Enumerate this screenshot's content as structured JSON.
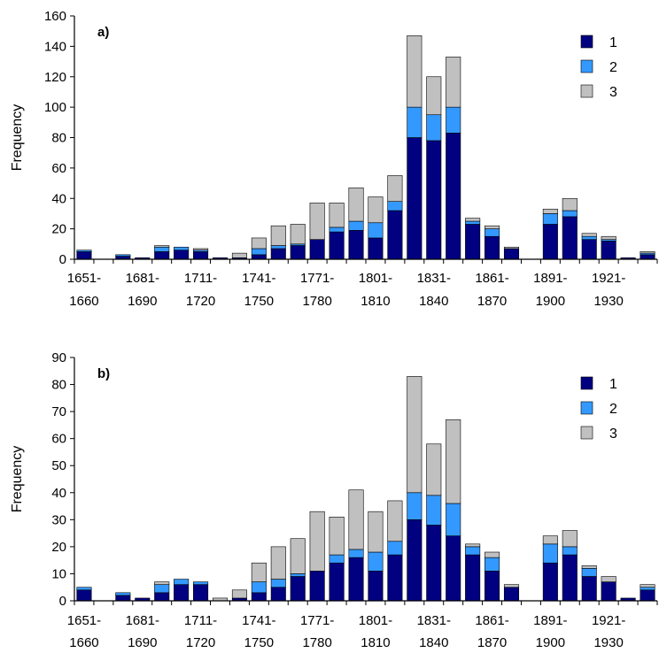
{
  "chart_data": [
    {
      "type": "bar",
      "stacked": true,
      "panel_label": "a)",
      "ylabel": "Frequency",
      "ylim": [
        0,
        160
      ],
      "yticks": [
        0,
        20,
        40,
        60,
        80,
        100,
        120,
        140,
        160
      ],
      "categories": [
        "1651-1660",
        "1661-1670",
        "1671-1680",
        "1681-1690",
        "1691-1700",
        "1701-1710",
        "1711-1720",
        "1721-1730",
        "1731-1740",
        "1741-1750",
        "1751-1760",
        "1761-1770",
        "1771-1780",
        "1781-1790",
        "1791-1800",
        "1801-1810",
        "1811-1820",
        "1821-1830",
        "1831-1840",
        "1841-1850",
        "1851-1860",
        "1861-1870",
        "1871-1880",
        "1881-1890",
        "1891-1900",
        "1901-1910",
        "1911-1920",
        "1921-1930",
        "1931-1940",
        "1941-1950"
      ],
      "x_tick_labels": [
        {
          "top": "1651-",
          "bottom": "1660",
          "index": 0
        },
        {
          "top": "1681-",
          "bottom": "1690",
          "index": 3
        },
        {
          "top": "1711-",
          "bottom": "1720",
          "index": 6
        },
        {
          "top": "1741-",
          "bottom": "1750",
          "index": 9
        },
        {
          "top": "1771-",
          "bottom": "1780",
          "index": 12
        },
        {
          "top": "1801-",
          "bottom": "1810",
          "index": 15
        },
        {
          "top": "1831-",
          "bottom": "1840",
          "index": 18
        },
        {
          "top": "1861-",
          "bottom": "1870",
          "index": 21
        },
        {
          "top": "1891-",
          "bottom": "1900",
          "index": 24
        },
        {
          "top": "1921-",
          "bottom": "1930",
          "index": 27
        }
      ],
      "series": [
        {
          "name": "1",
          "values": [
            5,
            0,
            2,
            1,
            5,
            6,
            5,
            1,
            1,
            3,
            7,
            9,
            13,
            18,
            19,
            14,
            32,
            80,
            78,
            83,
            23,
            15,
            7,
            0,
            23,
            28,
            13,
            12,
            1,
            3
          ]
        },
        {
          "name": "2",
          "values": [
            1,
            0,
            1,
            0,
            3,
            2,
            1,
            0,
            0,
            4,
            2,
            1,
            0,
            3,
            6,
            10,
            6,
            20,
            17,
            17,
            2,
            5,
            0,
            0,
            7,
            4,
            2,
            1,
            0,
            1
          ]
        },
        {
          "name": "3",
          "values": [
            0,
            0,
            0,
            0,
            1,
            0,
            1,
            0,
            3,
            7,
            13,
            13,
            24,
            16,
            22,
            17,
            17,
            47,
            25,
            33,
            2,
            2,
            1,
            0,
            3,
            8,
            2,
            2,
            0,
            1
          ]
        }
      ],
      "legend": {
        "position": "top-right"
      },
      "colors": {
        "1": "#000080",
        "2": "#3399ff",
        "3": "#c0c0c0"
      }
    },
    {
      "type": "bar",
      "stacked": true,
      "panel_label": "b)",
      "ylabel": "Frequency",
      "ylim": [
        0,
        90
      ],
      "yticks": [
        0,
        10,
        20,
        30,
        40,
        50,
        60,
        70,
        80,
        90
      ],
      "categories": [
        "1651-1660",
        "1661-1670",
        "1671-1680",
        "1681-1690",
        "1691-1700",
        "1701-1710",
        "1711-1720",
        "1721-1730",
        "1731-1740",
        "1741-1750",
        "1751-1760",
        "1761-1770",
        "1771-1780",
        "1781-1790",
        "1791-1800",
        "1801-1810",
        "1811-1820",
        "1821-1830",
        "1831-1840",
        "1841-1850",
        "1851-1860",
        "1861-1870",
        "1871-1880",
        "1881-1890",
        "1891-1900",
        "1901-1910",
        "1911-1920",
        "1921-1930",
        "1931-1940",
        "1941-1950"
      ],
      "x_tick_labels": [
        {
          "top": "1651-",
          "bottom": "1660",
          "index": 0
        },
        {
          "top": "1681-",
          "bottom": "1690",
          "index": 3
        },
        {
          "top": "1711-",
          "bottom": "1720",
          "index": 6
        },
        {
          "top": "1741-",
          "bottom": "1750",
          "index": 9
        },
        {
          "top": "1771-",
          "bottom": "1780",
          "index": 12
        },
        {
          "top": "1801-",
          "bottom": "1810",
          "index": 15
        },
        {
          "top": "1831-",
          "bottom": "1840",
          "index": 18
        },
        {
          "top": "1861-",
          "bottom": "1870",
          "index": 21
        },
        {
          "top": "1891-",
          "bottom": "1900",
          "index": 24
        },
        {
          "top": "1921-",
          "bottom": "1930",
          "index": 27
        }
      ],
      "series": [
        {
          "name": "1",
          "values": [
            4,
            0,
            2,
            1,
            3,
            6,
            6,
            0,
            1,
            3,
            5,
            9,
            11,
            14,
            16,
            11,
            17,
            30,
            28,
            24,
            17,
            11,
            5,
            0,
            14,
            17,
            9,
            7,
            1,
            4
          ]
        },
        {
          "name": "2",
          "values": [
            1,
            0,
            1,
            0,
            3,
            2,
            1,
            0,
            0,
            4,
            3,
            1,
            0,
            3,
            3,
            7,
            5,
            10,
            11,
            12,
            3,
            5,
            0,
            0,
            7,
            3,
            3,
            0,
            0,
            1
          ]
        },
        {
          "name": "3",
          "values": [
            0,
            0,
            0,
            0,
            1,
            0,
            0,
            1,
            3,
            7,
            12,
            13,
            22,
            14,
            22,
            15,
            15,
            43,
            19,
            31,
            1,
            2,
            1,
            0,
            3,
            6,
            1,
            2,
            0,
            1
          ]
        }
      ],
      "legend": {
        "position": "top-right"
      },
      "colors": {
        "1": "#000080",
        "2": "#3399ff",
        "3": "#c0c0c0"
      }
    }
  ]
}
